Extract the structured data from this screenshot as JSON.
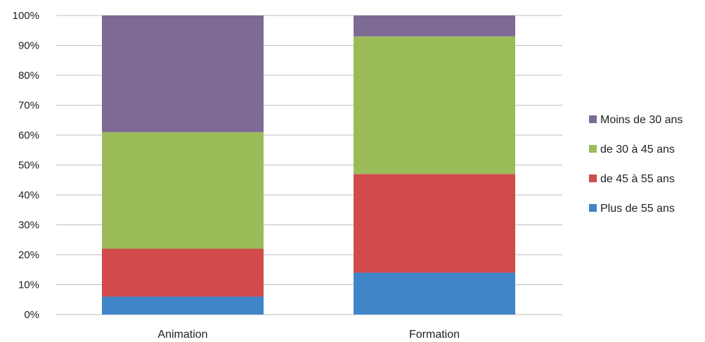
{
  "chart_data": {
    "type": "bar",
    "stacked": true,
    "percent": true,
    "categories": [
      "Animation",
      "Formation"
    ],
    "series": [
      {
        "name": "Plus de 55 ans",
        "values": [
          6,
          14
        ],
        "color": "#3f85c8"
      },
      {
        "name": "de 45 à 55 ans",
        "values": [
          16,
          33
        ],
        "color": "#d14b4b"
      },
      {
        "name": "de 30 à 45 ans",
        "values": [
          39,
          46
        ],
        "color": "#9bbb59"
      },
      {
        "name": "Moins de 30 ans",
        "values": [
          39,
          7
        ],
        "color": "#7d6a95"
      }
    ],
    "yticks": [
      "0%",
      "10%",
      "20%",
      "30%",
      "40%",
      "50%",
      "60%",
      "70%",
      "80%",
      "90%",
      "100%"
    ],
    "ylim": [
      0,
      100
    ],
    "grid": true,
    "legend_position": "right",
    "legend_order": [
      "Moins de 30 ans",
      "de 30 à 45 ans",
      "de 45 à 55 ans",
      "Plus de 55 ans"
    ],
    "title": "",
    "xlabel": "",
    "ylabel": ""
  }
}
